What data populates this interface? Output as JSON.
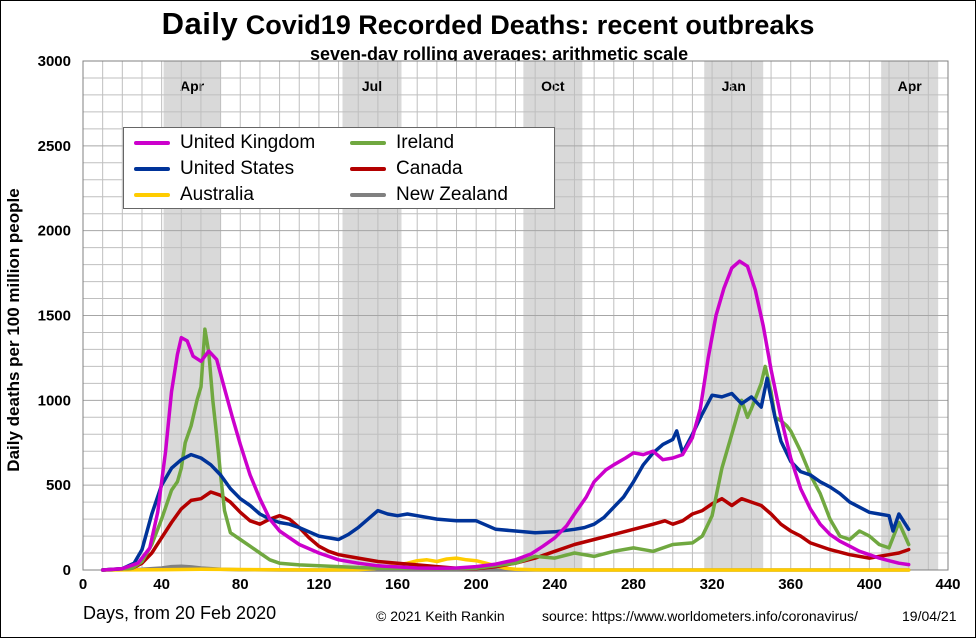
{
  "title_bold": "Daily",
  "title_rest": "Covid19 Recorded Deaths: recent outbreaks",
  "subtitle": "seven-day rolling averages; arithmetic scale",
  "ylabel": "Daily deaths per 100 million people",
  "xcaption": "Days, from 20 Feb 2020",
  "credit": "© 2021  Keith  Rankin",
  "source": "source:  https://www.worldometers.info/coronavirus/",
  "datestamp": "19/04/21",
  "colors": {
    "united_kingdom": "#cc00cc",
    "united_states": "#003399",
    "australia": "#ffcc00",
    "ireland": "#70a840",
    "canada": "#b30000",
    "new_zealand": "#808080",
    "shade": "#d9d9d9",
    "grid": "#bfbfbf"
  },
  "chart_data": {
    "type": "line",
    "xlim": [
      0,
      440
    ],
    "ylim": [
      0,
      3000
    ],
    "xticks": [
      0,
      40,
      80,
      120,
      160,
      200,
      240,
      280,
      320,
      360,
      400,
      440
    ],
    "yticks": [
      0,
      500,
      1000,
      1500,
      2000,
      2500,
      3000
    ],
    "grid": true,
    "legend": "top-left",
    "bands": [
      {
        "label": "Apr",
        "x0": 41,
        "x1": 70
      },
      {
        "label": "Jul",
        "x0": 132,
        "x1": 162
      },
      {
        "label": "Oct",
        "x0": 224,
        "x1": 254
      },
      {
        "label": "Jan",
        "x0": 316,
        "x1": 346
      },
      {
        "label": "Apr",
        "x0": 406,
        "x1": 435
      }
    ],
    "series": [
      {
        "name": "United Kingdom",
        "color_key": "united_kingdom",
        "x": [
          10,
          20,
          28,
          34,
          38,
          42,
          45,
          48,
          50,
          53,
          56,
          60,
          64,
          68,
          72,
          76,
          80,
          85,
          90,
          95,
          100,
          110,
          120,
          130,
          140,
          150,
          160,
          170,
          180,
          190,
          200,
          210,
          220,
          228,
          234,
          240,
          246,
          250,
          256,
          260,
          266,
          270,
          276,
          280,
          285,
          290,
          295,
          300,
          305,
          310,
          314,
          318,
          322,
          326,
          330,
          334,
          338,
          342,
          346,
          350,
          355,
          360,
          365,
          370,
          375,
          380,
          385,
          390,
          395,
          400,
          405,
          410,
          415,
          420
        ],
        "y": [
          0,
          8,
          40,
          130,
          340,
          700,
          1050,
          1270,
          1370,
          1350,
          1260,
          1230,
          1290,
          1240,
          1070,
          900,
          740,
          560,
          420,
          300,
          230,
          150,
          100,
          60,
          40,
          25,
          18,
          12,
          10,
          12,
          20,
          35,
          60,
          95,
          140,
          190,
          260,
          330,
          430,
          520,
          590,
          620,
          660,
          690,
          680,
          700,
          650,
          660,
          680,
          780,
          950,
          1250,
          1500,
          1660,
          1780,
          1820,
          1790,
          1650,
          1440,
          1180,
          900,
          660,
          480,
          360,
          270,
          210,
          170,
          140,
          110,
          90,
          70,
          55,
          40,
          32
        ]
      },
      {
        "name": "United States",
        "color_key": "united_states",
        "x": [
          10,
          20,
          26,
          30,
          35,
          40,
          45,
          50,
          55,
          60,
          65,
          70,
          75,
          80,
          85,
          90,
          95,
          100,
          105,
          110,
          120,
          130,
          135,
          140,
          145,
          150,
          155,
          160,
          165,
          170,
          180,
          190,
          200,
          210,
          220,
          230,
          240,
          250,
          255,
          260,
          265,
          270,
          275,
          280,
          285,
          290,
          295,
          300,
          302,
          305,
          310,
          315,
          320,
          325,
          330,
          335,
          340,
          345,
          348,
          350,
          352,
          355,
          360,
          365,
          370,
          375,
          380,
          385,
          390,
          395,
          400,
          405,
          410,
          412,
          415,
          420
        ],
        "y": [
          0,
          8,
          40,
          120,
          330,
          500,
          600,
          650,
          680,
          660,
          620,
          560,
          480,
          420,
          380,
          330,
          300,
          280,
          270,
          250,
          200,
          180,
          210,
          250,
          300,
          350,
          330,
          320,
          330,
          320,
          300,
          290,
          290,
          240,
          230,
          220,
          225,
          240,
          250,
          270,
          310,
          370,
          430,
          520,
          620,
          690,
          740,
          770,
          820,
          690,
          800,
          920,
          1030,
          1020,
          1040,
          980,
          1020,
          960,
          1130,
          1010,
          900,
          760,
          640,
          580,
          560,
          520,
          490,
          450,
          400,
          370,
          340,
          330,
          320,
          230,
          330,
          240
        ]
      },
      {
        "name": "Australia",
        "color_key": "australia",
        "x": [
          10,
          40,
          60,
          80,
          100,
          120,
          140,
          148,
          155,
          160,
          165,
          170,
          175,
          180,
          185,
          190,
          195,
          200,
          205,
          210,
          215,
          220,
          230,
          260,
          300,
          340,
          380,
          420
        ],
        "y": [
          0,
          2,
          5,
          3,
          1,
          0,
          2,
          8,
          20,
          30,
          40,
          55,
          60,
          50,
          65,
          70,
          60,
          55,
          40,
          25,
          10,
          5,
          2,
          0,
          0,
          0,
          0,
          0
        ]
      },
      {
        "name": "Ireland",
        "color_key": "ireland",
        "x": [
          10,
          25,
          30,
          35,
          40,
          45,
          48,
          50,
          52,
          55,
          58,
          60,
          62,
          64,
          66,
          68,
          70,
          72,
          75,
          80,
          85,
          90,
          95,
          100,
          110,
          120,
          130,
          140,
          150,
          160,
          180,
          200,
          220,
          230,
          240,
          250,
          260,
          270,
          280,
          290,
          300,
          310,
          315,
          320,
          325,
          330,
          335,
          338,
          340,
          345,
          347,
          350,
          352,
          355,
          358,
          360,
          365,
          370,
          375,
          380,
          385,
          390,
          395,
          400,
          405,
          410,
          415,
          420
        ],
        "y": [
          0,
          10,
          50,
          150,
          300,
          470,
          520,
          600,
          750,
          850,
          1000,
          1080,
          1420,
          1280,
          1000,
          790,
          560,
          350,
          220,
          180,
          140,
          100,
          60,
          40,
          30,
          25,
          20,
          15,
          10,
          10,
          8,
          10,
          40,
          80,
          70,
          100,
          80,
          110,
          130,
          110,
          150,
          160,
          200,
          320,
          600,
          800,
          1000,
          900,
          950,
          1100,
          1200,
          1050,
          900,
          880,
          850,
          820,
          700,
          560,
          450,
          300,
          200,
          180,
          230,
          200,
          150,
          130,
          280,
          150
        ]
      },
      {
        "name": "Canada",
        "color_key": "canada",
        "x": [
          10,
          25,
          30,
          35,
          40,
          45,
          50,
          55,
          60,
          65,
          70,
          75,
          80,
          85,
          90,
          95,
          100,
          105,
          110,
          115,
          120,
          125,
          130,
          140,
          150,
          160,
          170,
          180,
          190,
          200,
          210,
          220,
          230,
          240,
          250,
          260,
          270,
          280,
          290,
          296,
          300,
          305,
          310,
          315,
          320,
          325,
          330,
          335,
          340,
          345,
          350,
          355,
          360,
          365,
          370,
          380,
          390,
          400,
          405,
          410,
          415,
          420
        ],
        "y": [
          0,
          10,
          40,
          100,
          190,
          280,
          360,
          410,
          420,
          460,
          440,
          400,
          340,
          290,
          270,
          300,
          320,
          300,
          250,
          190,
          140,
          110,
          90,
          70,
          50,
          40,
          30,
          20,
          10,
          8,
          20,
          40,
          70,
          110,
          150,
          180,
          210,
          240,
          270,
          290,
          270,
          290,
          330,
          350,
          390,
          420,
          380,
          420,
          400,
          380,
          330,
          270,
          230,
          200,
          160,
          120,
          90,
          70,
          80,
          90,
          100,
          120
        ]
      },
      {
        "name": "New Zealand",
        "color_key": "new_zealand",
        "x": [
          10,
          30,
          40,
          45,
          50,
          55,
          60,
          65,
          70,
          80,
          100,
          200,
          300,
          420
        ],
        "y": [
          0,
          5,
          12,
          20,
          22,
          18,
          12,
          8,
          5,
          2,
          0,
          0,
          0,
          0
        ]
      }
    ]
  }
}
